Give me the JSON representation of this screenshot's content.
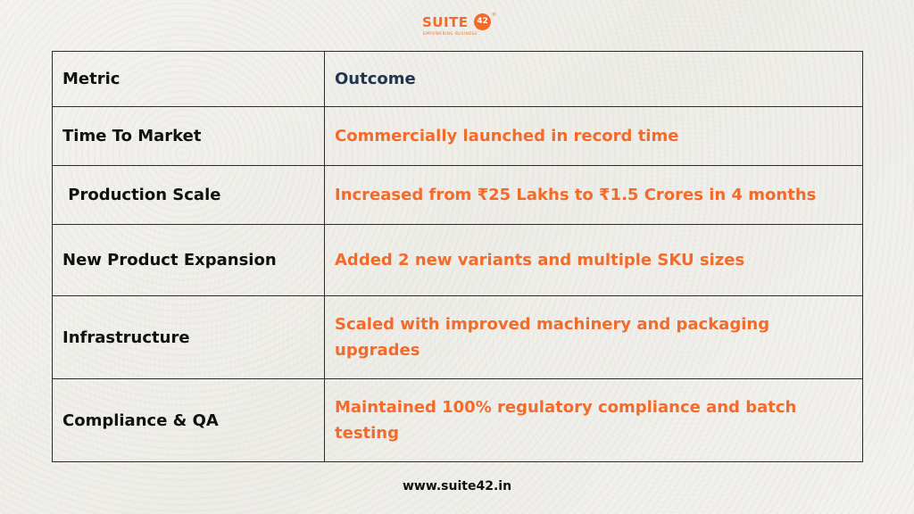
{
  "brand": {
    "name": "SUITE",
    "badge": "42",
    "registered": "®",
    "tagline": "EMPOWERING BUSINESS",
    "accent_color": "#f26b2a",
    "header_color": "#1f3550"
  },
  "table": {
    "header": {
      "metric": "Metric",
      "outcome": "Outcome"
    },
    "rows": [
      {
        "metric": "Time To Market",
        "outcome": "Commercially launched in record time"
      },
      {
        "metric": " Production Scale",
        "outcome": "Increased from ₹25 Lakhs to ₹1.5 Crores in 4 months"
      },
      {
        "metric": "New Product Expansion",
        "outcome": "Added 2 new variants and multiple SKU sizes"
      },
      {
        "metric": "Infrastructure",
        "outcome": "Scaled with improved machinery and packaging upgrades"
      },
      {
        "metric": "Compliance & QA",
        "outcome": "Maintained 100% regulatory compliance and batch testing"
      }
    ]
  },
  "footer": {
    "website": "www.suite42.in"
  }
}
